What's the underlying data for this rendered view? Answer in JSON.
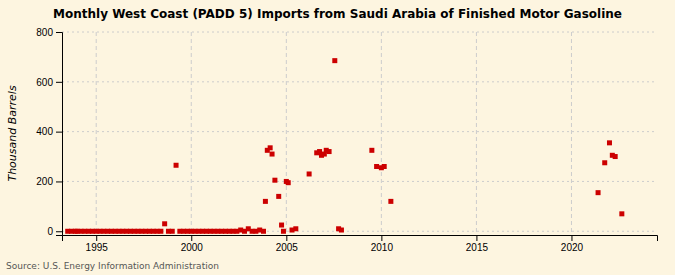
{
  "chart_data": {
    "type": "scatter",
    "title": "Monthly West Coast (PADD 5) Imports from Saudi Arabia of Finished Motor Gasoline",
    "y_label": "Thousand Barrels",
    "annotations": [
      "Source: U.S. Energy Information Administration"
    ],
    "x": [
      1993.5,
      1993.7,
      1993.9,
      1994.0,
      1994.2,
      1994.4,
      1994.6,
      1994.8,
      1995.0,
      1995.2,
      1995.4,
      1995.6,
      1995.8,
      1996.0,
      1996.2,
      1996.4,
      1996.6,
      1996.8,
      1997.0,
      1997.2,
      1997.4,
      1997.6,
      1997.8,
      1998.0,
      1998.2,
      1998.4,
      1998.6,
      1998.8,
      1999.0,
      1999.2,
      1999.4,
      1999.6,
      1999.8,
      2000.0,
      2000.2,
      2000.4,
      2000.6,
      2000.8,
      2001.0,
      2001.2,
      2001.4,
      2001.6,
      2001.8,
      2002.0,
      2002.2,
      2002.4,
      2002.6,
      2002.8,
      2003.0,
      2003.2,
      2003.4,
      2003.6,
      2003.8,
      2003.9,
      2004.0,
      2004.15,
      2004.25,
      2004.4,
      2004.6,
      2004.75,
      2004.85,
      2005.0,
      2005.1,
      2005.3,
      2005.5,
      2006.2,
      2006.6,
      2006.75,
      2006.85,
      2007.0,
      2007.1,
      2007.25,
      2007.55,
      2007.75,
      2007.9,
      2009.5,
      2009.75,
      2010.0,
      2010.15,
      2010.5,
      2021.4,
      2021.75,
      2022.0,
      2022.15,
      2022.3,
      2022.65
    ],
    "values": [
      0,
      0,
      0,
      0,
      0,
      0,
      0,
      0,
      0,
      0,
      0,
      0,
      0,
      0,
      0,
      0,
      0,
      0,
      0,
      0,
      0,
      0,
      0,
      0,
      0,
      0,
      30,
      0,
      0,
      265,
      0,
      0,
      0,
      0,
      0,
      0,
      0,
      0,
      0,
      0,
      0,
      0,
      0,
      0,
      0,
      0,
      5,
      0,
      10,
      0,
      0,
      5,
      0,
      120,
      325,
      335,
      310,
      205,
      140,
      25,
      0,
      200,
      195,
      5,
      10,
      230,
      315,
      320,
      305,
      310,
      325,
      320,
      685,
      10,
      5,
      325,
      260,
      255,
      260,
      120,
      155,
      275,
      355,
      305,
      300,
      70
    ],
    "color": "#cc0000",
    "marker": "square",
    "xlim": [
      1993.2,
      2024.5
    ],
    "ylim": [
      -15,
      800
    ],
    "xticks": [
      1995,
      2000,
      2005,
      2010,
      2015,
      2020
    ],
    "yticks": [
      0,
      200,
      400,
      600,
      800
    ],
    "grid": true
  }
}
